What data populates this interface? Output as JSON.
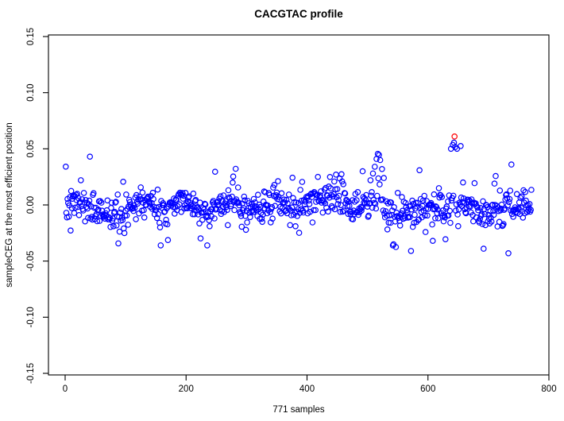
{
  "window": {
    "background": "#FFFFFF"
  },
  "chart_data": {
    "type": "scatter",
    "title": "CACGTAC profile",
    "xlabel": "771 samples",
    "ylabel": "sampleCEG at the most efficient position",
    "n_samples": 771,
    "xlim": [
      0,
      800
    ],
    "ylim": [
      -0.15,
      0.15
    ],
    "x_ticks": [
      0,
      200,
      400,
      600,
      800
    ],
    "x_tick_labels": [
      "0",
      "200",
      "400",
      "600",
      "800"
    ],
    "y_ticks": [
      -0.15,
      -0.1,
      -0.05,
      0.0,
      0.05,
      0.1,
      0.15
    ],
    "y_tick_labels": [
      "-0.15",
      "-0.10",
      "-0.05",
      "0.00",
      "0.05",
      "0.10",
      "0.15"
    ],
    "grid": false,
    "legend": "none",
    "box": true,
    "marker": {
      "shape": "open-circle",
      "radius_px": 3.2,
      "stroke_px": 1.2
    },
    "series": [
      {
        "name": "samples",
        "color": "#0000FF",
        "style": "open-circle"
      },
      {
        "name": "highlight",
        "color": "#FF0000",
        "style": "open-circle"
      }
    ],
    "highlight_points": [
      [
        644,
        0.061
      ]
    ],
    "notable_blue_points": [
      [
        26,
        0.022
      ],
      [
        41,
        0.043
      ],
      [
        418,
        0.025
      ],
      [
        448,
        0.027
      ],
      [
        492,
        0.03
      ],
      [
        505,
        0.022
      ],
      [
        509,
        0.028
      ],
      [
        512,
        0.034
      ],
      [
        515,
        0.041
      ],
      [
        517,
        0.0455
      ],
      [
        519,
        0.0445
      ],
      [
        521,
        0.04
      ],
      [
        524,
        0.032
      ],
      [
        527,
        0.024
      ],
      [
        638,
        0.05
      ],
      [
        641,
        0.0535
      ],
      [
        643,
        0.0555
      ],
      [
        645,
        0.0515
      ],
      [
        648,
        0.05
      ],
      [
        654,
        0.0525
      ],
      [
        658,
        0.02
      ],
      [
        547,
        -0.0375
      ],
      [
        572,
        -0.041
      ],
      [
        608,
        -0.032
      ],
      [
        692,
        -0.039
      ],
      [
        733,
        -0.043
      ]
    ],
    "band": {
      "center": 0,
      "typical_sd": 0.0065,
      "tail_sd": 0.015,
      "tail_prob": 0.16,
      "seed": 7,
      "clamp": [
        -0.036,
        0.036
      ]
    },
    "mean_profile": [
      [
        0,
        -0.001
      ],
      [
        24,
        0.001
      ],
      [
        50,
        -0.004
      ],
      [
        76,
        -0.008
      ],
      [
        96,
        -0.011
      ],
      [
        116,
        0.003
      ],
      [
        135,
        0.005
      ],
      [
        155,
        -0.008
      ],
      [
        175,
        0.001
      ],
      [
        194,
        0.005
      ],
      [
        214,
        -0.004
      ],
      [
        234,
        -0.008
      ],
      [
        253,
        -0.001
      ],
      [
        273,
        0.006
      ],
      [
        293,
        0.001
      ],
      [
        313,
        -0.006
      ],
      [
        332,
        -0.001
      ],
      [
        352,
        0.005
      ],
      [
        372,
        -0.004
      ],
      [
        391,
        0.002
      ],
      [
        411,
        0.008
      ],
      [
        431,
        0.004
      ],
      [
        450,
        0.01
      ],
      [
        470,
        -0.006
      ],
      [
        490,
        0.0
      ],
      [
        509,
        0.004
      ],
      [
        529,
        -0.006
      ],
      [
        549,
        -0.011
      ],
      [
        569,
        -0.008
      ],
      [
        588,
        -0.005
      ],
      [
        608,
        -0.002
      ],
      [
        628,
        -0.003
      ],
      [
        647,
        0.001
      ],
      [
        667,
        -0.001
      ],
      [
        687,
        -0.006
      ],
      [
        707,
        -0.008
      ],
      [
        726,
        -0.004
      ],
      [
        746,
        0.001
      ],
      [
        771,
        0.002
      ]
    ]
  }
}
